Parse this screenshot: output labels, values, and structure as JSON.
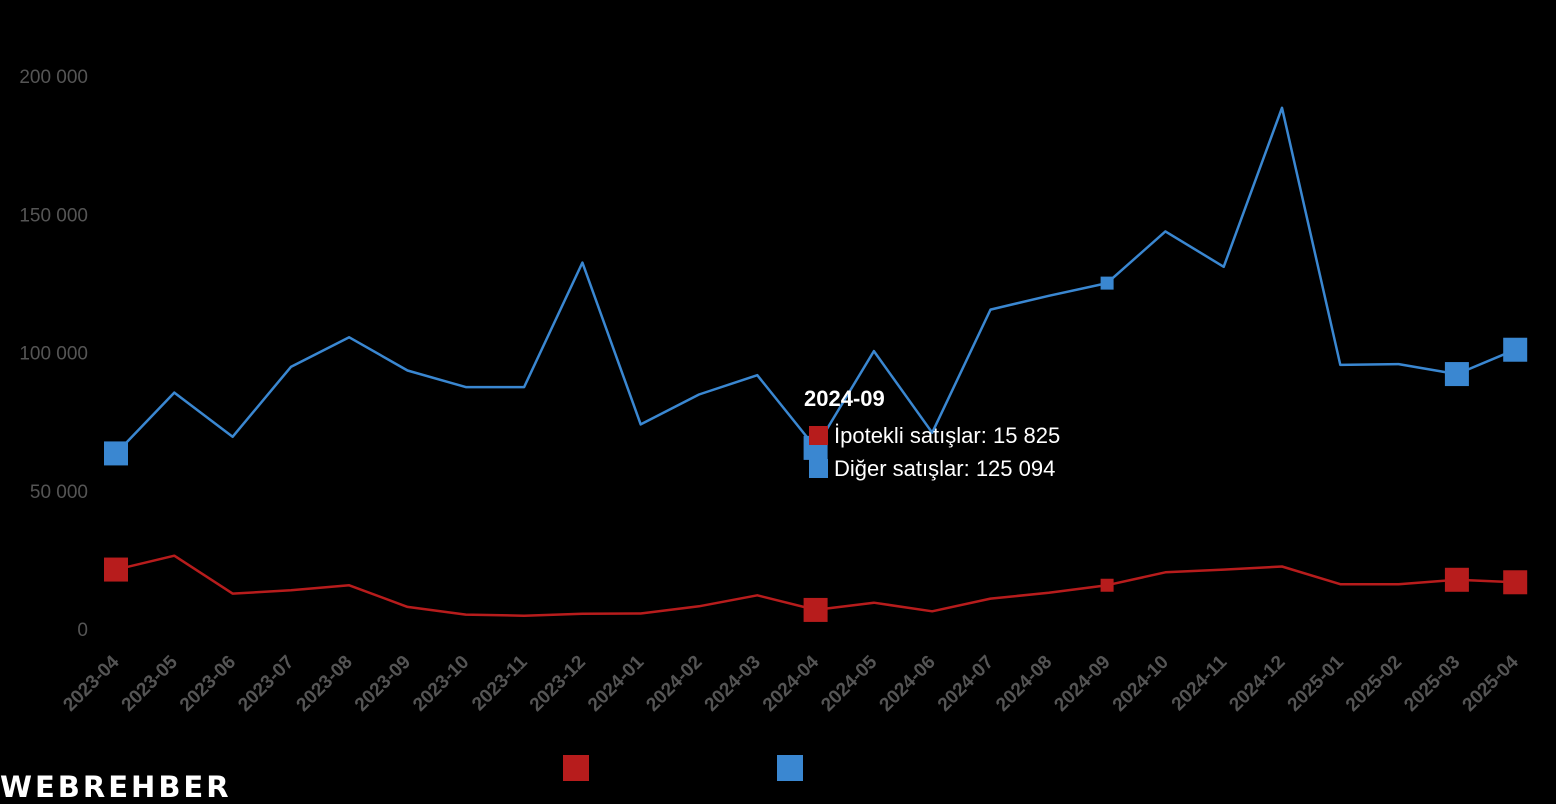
{
  "chart_data": {
    "type": "line",
    "categories": [
      "2023-04",
      "2023-05",
      "2023-06",
      "2023-07",
      "2023-08",
      "2023-09",
      "2023-10",
      "2023-11",
      "2023-12",
      "2024-01",
      "2024-02",
      "2024-03",
      "2024-04",
      "2024-05",
      "2024-06",
      "2024-07",
      "2024-08",
      "2024-09",
      "2024-10",
      "2024-11",
      "2024-12",
      "2025-01",
      "2025-02",
      "2025-03",
      "2025-04"
    ],
    "series": [
      {
        "key": "ipotekli",
        "color": "#b71c1c",
        "values": [
          21500,
          26500,
          12800,
          14000,
          15800,
          8000,
          5200,
          4800,
          5500,
          5600,
          8200,
          12200,
          6900,
          9500,
          6400,
          11000,
          13100,
          15825,
          20500,
          21500,
          22600,
          16200,
          16200,
          17800,
          16900
        ]
      },
      {
        "key": "diger",
        "color": "#3a87d1",
        "values": [
          63500,
          85500,
          69500,
          94800,
          105500,
          93500,
          87500,
          87500,
          132500,
          74000,
          84800,
          91800,
          65500,
          100500,
          71000,
          115500,
          120500,
          125094,
          143800,
          131000,
          188500,
          95500,
          95800,
          92200,
          101000
        ]
      }
    ],
    "ylim": [
      0,
      200000
    ],
    "yticks": [
      0,
      50000,
      100000,
      150000,
      200000
    ],
    "ytick_labels": [
      "0",
      "50 000",
      "100 000",
      "150 000",
      "200 000"
    ],
    "markers": [
      0,
      12,
      17,
      23,
      24
    ],
    "grid": false,
    "legend": "bottom"
  },
  "tooltip": {
    "title": "2024-09",
    "rows": [
      {
        "label": "İpotekli satışlar: 15 825",
        "color": "#b71c1c"
      },
      {
        "label": "Diğer satışlar: 125 094",
        "color": "#3a87d1"
      }
    ]
  },
  "logo": "WEBREHBER"
}
